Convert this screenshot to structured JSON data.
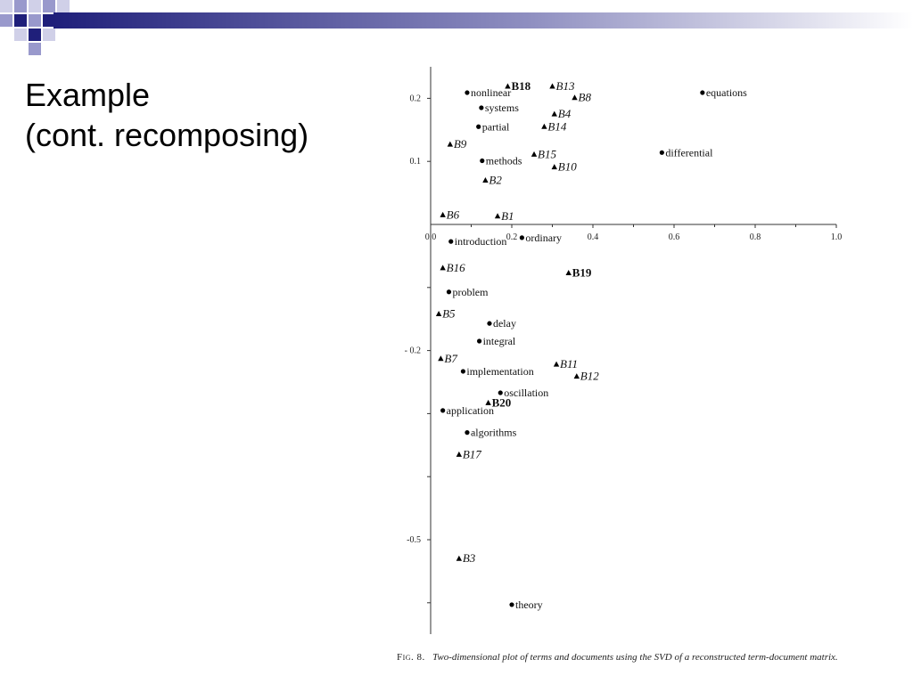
{
  "slide": {
    "title_line1": "Example",
    "title_line2": "(cont. recomposing)",
    "accent": "#1F1F7A",
    "accent_light": "#9999CC"
  },
  "caption": {
    "fig_label": "Fig. 8.",
    "text": "Two-dimensional plot of terms and documents using the SVD of a reconstructed term-document matrix."
  },
  "chart_data": {
    "type": "scatter",
    "title": "",
    "xlabel": "",
    "ylabel": "",
    "xlim": [
      0,
      1.0
    ],
    "x_ticks": [
      0.0,
      0.2,
      0.4,
      0.6,
      0.8,
      1.0
    ],
    "x_tick_labels": [
      "0.0",
      "0.2",
      "0.4",
      "0.6",
      "0.8",
      "1.0"
    ],
    "y_tick_labels": [
      {
        "value": 0.2,
        "label": "0.2"
      },
      {
        "value": 0.1,
        "label": "0.1"
      },
      {
        "value": -0.2,
        "label": "- 0.2"
      },
      {
        "value": -0.5,
        "label": "-0.5"
      }
    ],
    "grid": false,
    "series": [
      {
        "marker": "circle",
        "points": [
          {
            "label": "nonlinear",
            "x": 0.09,
            "y": 0.209
          },
          {
            "label": "systems",
            "x": 0.125,
            "y": 0.185
          },
          {
            "label": "partial",
            "x": 0.118,
            "y": 0.155
          },
          {
            "label": "methods",
            "x": 0.127,
            "y": 0.101
          },
          {
            "label": "equations",
            "x": 0.67,
            "y": 0.209
          },
          {
            "label": "differential",
            "x": 0.57,
            "y": 0.114
          },
          {
            "label": "introduction",
            "x": 0.05,
            "y": -0.027
          },
          {
            "label": "ordinary",
            "x": 0.225,
            "y": -0.021
          },
          {
            "label": "problem",
            "x": 0.045,
            "y": -0.107
          },
          {
            "label": "delay",
            "x": 0.145,
            "y": -0.157
          },
          {
            "label": "integral",
            "x": 0.12,
            "y": -0.185
          },
          {
            "label": "implementation",
            "x": 0.08,
            "y": -0.233
          },
          {
            "label": "oscillation",
            "x": 0.172,
            "y": -0.267
          },
          {
            "label": "application",
            "x": 0.03,
            "y": -0.295
          },
          {
            "label": "algorithms",
            "x": 0.09,
            "y": -0.33
          },
          {
            "label": "theory",
            "x": 0.2,
            "y": -0.603
          }
        ]
      },
      {
        "marker": "triangle",
        "points": [
          {
            "label": "B18",
            "x": 0.19,
            "y": 0.219,
            "style": "bold"
          },
          {
            "label": "B13",
            "x": 0.3,
            "y": 0.219,
            "style": "italic"
          },
          {
            "label": "B8",
            "x": 0.355,
            "y": 0.201,
            "style": "italic"
          },
          {
            "label": "B4",
            "x": 0.305,
            "y": 0.175,
            "style": "italic"
          },
          {
            "label": "B14",
            "x": 0.28,
            "y": 0.155,
            "style": "italic"
          },
          {
            "label": "B9",
            "x": 0.048,
            "y": 0.127,
            "style": "italic"
          },
          {
            "label": "B15",
            "x": 0.255,
            "y": 0.111,
            "style": "italic"
          },
          {
            "label": "B10",
            "x": 0.305,
            "y": 0.091,
            "style": "italic"
          },
          {
            "label": "B2",
            "x": 0.135,
            "y": 0.07,
            "style": "italic"
          },
          {
            "label": "B6",
            "x": 0.03,
            "y": 0.015,
            "style": "italic"
          },
          {
            "label": "B1",
            "x": 0.165,
            "y": 0.013,
            "style": "italic"
          },
          {
            "label": "B16",
            "x": 0.03,
            "y": -0.069,
            "style": "italic"
          },
          {
            "label": "B19",
            "x": 0.34,
            "y": -0.077,
            "style": "bold"
          },
          {
            "label": "B5",
            "x": 0.02,
            "y": -0.142,
            "style": "italic"
          },
          {
            "label": "B7",
            "x": 0.025,
            "y": -0.213,
            "style": "italic"
          },
          {
            "label": "B11",
            "x": 0.31,
            "y": -0.222,
            "style": "italic"
          },
          {
            "label": "B12",
            "x": 0.36,
            "y": -0.241,
            "style": "italic"
          },
          {
            "label": "B20",
            "x": 0.142,
            "y": -0.283,
            "style": "bold"
          },
          {
            "label": "B17",
            "x": 0.07,
            "y": -0.365,
            "style": "italic"
          },
          {
            "label": "B3",
            "x": 0.07,
            "y": -0.53,
            "style": "italic"
          }
        ]
      }
    ]
  }
}
